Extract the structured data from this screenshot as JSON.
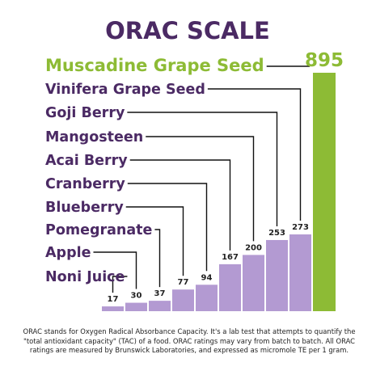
{
  "chart_data": {
    "type": "bar",
    "title": "ORAC SCALE",
    "categories": [
      "Noni Juice",
      "Apple",
      "Pomegranate",
      "Blueberry",
      "Cranberry",
      "Acai Berry",
      "Mangosteen",
      "Goji Berry",
      "Vinifera Grape Seed",
      "Muscadine Grape Seed"
    ],
    "values": [
      17,
      30,
      37,
      77,
      94,
      167,
      200,
      253,
      273,
      895
    ],
    "value_labels": [
      "17",
      "30",
      "37",
      "77",
      "94",
      "167",
      "200",
      "253",
      "273",
      "895"
    ],
    "highlight_category": "Muscadine Grape Seed",
    "colors": {
      "bars": "#b39ad2",
      "highlight": "#8dbb35",
      "title": "#4b2a64",
      "labels": "#4b2a64",
      "leaders": "#111111"
    },
    "legend": "none",
    "grid": false,
    "axes": "hidden"
  },
  "footnote": "ORAC stands for Oxygen Radical Absorbance Capacity. It's a lab test that attempts to quantify the \"total antioxidant capacity\" (TAC) of a food. ORAC ratings may vary from batch to batch.  All ORAC ratings are measured by Brunswick Laboratories, and expressed as micromole TE per 1 gram."
}
